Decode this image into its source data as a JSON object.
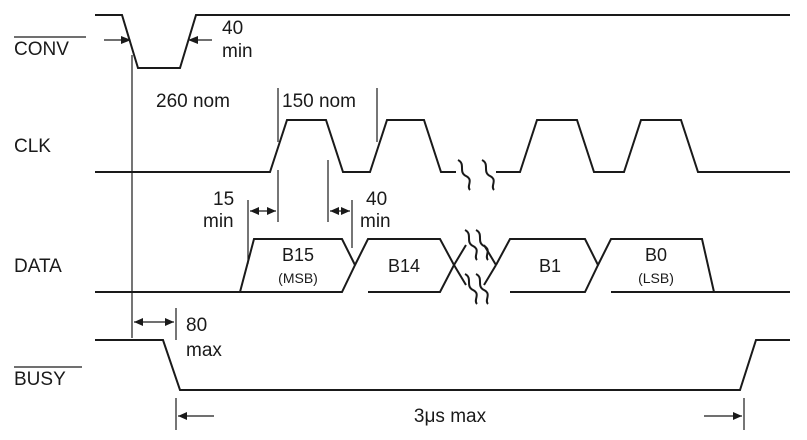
{
  "signals": {
    "conv": "CONV",
    "clk": "CLK",
    "data": "DATA",
    "busy": "BUSY"
  },
  "annotations": {
    "conv_pulse_value": "40",
    "conv_pulse_unit": "min",
    "clk_delay": "260 nom",
    "clk_period": "150 nom",
    "setup_value": "15",
    "setup_unit": "min",
    "hold_value": "40",
    "hold_unit": "min",
    "busy_delay_value": "80",
    "busy_delay_unit": "max",
    "conversion_time": "3μs max"
  },
  "data_cells": {
    "b15": "B15",
    "b15_sub": "(MSB)",
    "b14": "B14",
    "b1": "B1",
    "b0": "B0",
    "b0_sub": "(LSB)"
  }
}
